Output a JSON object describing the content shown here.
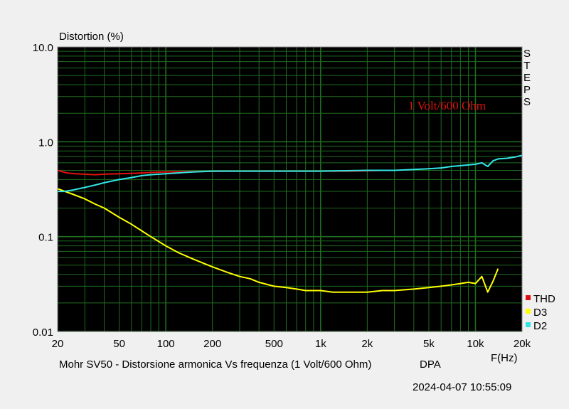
{
  "chart_data": {
    "type": "line",
    "title": "Mohr SV50 - Distorsione armonica Vs frequenza (1 Volt/600 Ohm)",
    "ylabel": "Distortion (%)",
    "xlabel": "F(Hz)",
    "brand": "DPA",
    "timestamp": "2024-04-07 10:55:09",
    "side_label": "STEPS",
    "annotation": "1 Volt/600 Ohm",
    "annotation_color": "#e01010",
    "x_scale": "log",
    "y_scale": "log",
    "xlim": [
      20,
      20000
    ],
    "ylim": [
      0.01,
      10
    ],
    "grid": true,
    "legend_position": "bottom-right",
    "background_color": "#000000",
    "grid_color": "#1f6b1f",
    "x_tick_values": [
      20,
      50,
      100,
      200,
      500,
      1000,
      2000,
      5000,
      10000,
      20000
    ],
    "x_tick_labels": [
      "20",
      "50",
      "100",
      "200",
      "500",
      "1k",
      "2k",
      "5k",
      "10k",
      "20k"
    ],
    "y_tick_values": [
      0.01,
      0.1,
      1,
      10
    ],
    "y_tick_labels": [
      "0.01",
      "0.1",
      "1.0",
      "10.0"
    ],
    "series": [
      {
        "name": "THD",
        "color": "#e01010",
        "x": [
          20,
          23,
          26,
          30,
          35,
          40,
          50,
          60,
          70,
          80,
          100,
          120,
          150,
          200,
          300,
          500,
          700,
          1000,
          1500,
          2000,
          2500
        ],
        "y": [
          0.5,
          0.47,
          0.46,
          0.455,
          0.45,
          0.455,
          0.46,
          0.465,
          0.47,
          0.475,
          0.48,
          0.483,
          0.485,
          0.488,
          0.49,
          0.49,
          0.49,
          0.49,
          0.49,
          0.495,
          0.5
        ]
      },
      {
        "name": "D3",
        "color": "#ffff00",
        "x": [
          20,
          25,
          30,
          35,
          40,
          50,
          60,
          70,
          80,
          100,
          120,
          150,
          200,
          250,
          300,
          350,
          400,
          500,
          600,
          700,
          800,
          1000,
          1200,
          1500,
          2000,
          2500,
          3000,
          4000,
          5000,
          6000,
          7000,
          8000,
          9000,
          10000,
          11000,
          12000,
          13000,
          14000
        ],
        "y": [
          0.32,
          0.28,
          0.25,
          0.22,
          0.2,
          0.16,
          0.135,
          0.115,
          0.1,
          0.08,
          0.068,
          0.058,
          0.048,
          0.042,
          0.038,
          0.036,
          0.033,
          0.03,
          0.029,
          0.028,
          0.027,
          0.027,
          0.026,
          0.026,
          0.026,
          0.027,
          0.027,
          0.028,
          0.029,
          0.03,
          0.031,
          0.032,
          0.033,
          0.032,
          0.038,
          0.026,
          0.034,
          0.046
        ]
      },
      {
        "name": "D2",
        "color": "#33e6e6",
        "x": [
          20,
          22,
          25,
          30,
          35,
          40,
          50,
          60,
          70,
          80,
          100,
          120,
          150,
          200,
          300,
          500,
          1000,
          2000,
          3000,
          4000,
          5000,
          6000,
          7000,
          8000,
          9000,
          10000,
          11000,
          12000,
          13000,
          14000,
          16000,
          18000,
          20000
        ],
        "y": [
          0.3,
          0.3,
          0.31,
          0.33,
          0.35,
          0.37,
          0.4,
          0.42,
          0.44,
          0.45,
          0.46,
          0.47,
          0.48,
          0.49,
          0.49,
          0.49,
          0.49,
          0.5,
          0.5,
          0.51,
          0.52,
          0.53,
          0.55,
          0.56,
          0.57,
          0.58,
          0.6,
          0.55,
          0.63,
          0.66,
          0.67,
          0.69,
          0.72
        ]
      }
    ]
  }
}
